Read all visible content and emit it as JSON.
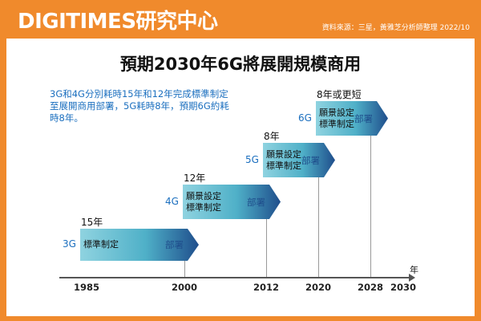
{
  "header": {
    "brand": "DIGITIMES研究中心",
    "source": "資料來源：三星，黃雅芝分析師整理 2022/10"
  },
  "title": "預期2030年6G將展開規模商用",
  "note": "3G和4G分別耗時15年和12年完成標準制定至展開商用部署，5G耗時8年，預期6G約耗時8年。",
  "generations": [
    {
      "name": "3G",
      "duration": "15年",
      "phase": "標準制定",
      "deploy": "部署",
      "start": 1985,
      "deploy_year": 2000
    },
    {
      "name": "4G",
      "duration": "12年",
      "phase": "願景設定\n標準制定",
      "deploy": "部署",
      "start": 2000,
      "deploy_year": 2012
    },
    {
      "name": "5G",
      "duration": "8年",
      "phase": "願景設定\n標準制定",
      "deploy": "部署",
      "start": 2012,
      "deploy_year": 2020
    },
    {
      "name": "6G",
      "duration": "8年或更短",
      "phase": "願景設定\n標準制定",
      "deploy": "部署",
      "start": 2020,
      "deploy_year": 2028
    }
  ],
  "axis": {
    "unit": "年",
    "ticks": [
      "1985",
      "2000",
      "2012",
      "2020",
      "2028",
      "2030"
    ]
  },
  "colors": {
    "brand_orange": "#f08a2c",
    "bar_light": "#8fd3e0",
    "bar_dark": "#1f4e8c",
    "label_blue": "#1b6fbf"
  }
}
